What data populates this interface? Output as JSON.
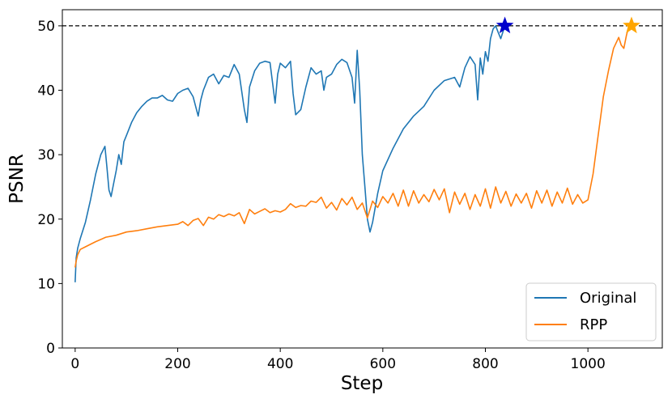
{
  "chart_data": {
    "type": "line",
    "title": "",
    "xlabel": "Step",
    "ylabel": "PSNR",
    "xlim": [
      -25,
      1145
    ],
    "ylim": [
      0,
      52.5
    ],
    "xticks": [
      0,
      200,
      400,
      600,
      800,
      1000
    ],
    "yticks": [
      0,
      10,
      20,
      30,
      40,
      50
    ],
    "grid": false,
    "legend_position": "bottom-right",
    "reference_line": {
      "y": 50,
      "style": "dashed",
      "color": "#000000"
    },
    "series": [
      {
        "name": "Original",
        "color": "#1f77b4",
        "x": [
          0,
          2,
          5,
          10,
          20,
          30,
          40,
          50,
          58,
          62,
          66,
          70,
          75,
          80,
          85,
          90,
          95,
          100,
          110,
          120,
          130,
          140,
          150,
          160,
          170,
          180,
          190,
          200,
          210,
          220,
          230,
          240,
          245,
          250,
          260,
          270,
          280,
          290,
          300,
          310,
          320,
          330,
          335,
          340,
          350,
          360,
          370,
          380,
          390,
          395,
          400,
          410,
          420,
          425,
          430,
          440,
          450,
          460,
          470,
          480,
          485,
          490,
          500,
          510,
          520,
          530,
          540,
          545,
          550,
          555,
          560,
          565,
          570,
          575,
          580,
          590,
          600,
          620,
          640,
          660,
          680,
          700,
          720,
          740,
          750,
          760,
          770,
          780,
          785,
          790,
          795,
          800,
          805,
          810,
          815,
          820,
          825,
          830,
          838
        ],
        "y": [
          10.2,
          14,
          15.5,
          17,
          19.5,
          23,
          27,
          30,
          31.3,
          28,
          24.5,
          23.5,
          25.5,
          27.5,
          30,
          28.5,
          32,
          33,
          35,
          36.5,
          37.5,
          38.3,
          38.8,
          38.8,
          39.2,
          38.5,
          38.3,
          39.5,
          40,
          40.3,
          39,
          36,
          38.5,
          40,
          42,
          42.5,
          41,
          42.3,
          42,
          44,
          42.5,
          37,
          35,
          40.5,
          43,
          44.2,
          44.5,
          44.3,
          38,
          42.5,
          44.2,
          43.5,
          44.5,
          39.5,
          36.2,
          37,
          40.5,
          43.5,
          42.5,
          43,
          40,
          42,
          42.5,
          44,
          44.8,
          44.3,
          42,
          38,
          46.2,
          40,
          30,
          25,
          20,
          18,
          19.5,
          24,
          27.5,
          31,
          34,
          36,
          37.5,
          40,
          41.5,
          42,
          40.5,
          43.5,
          45.2,
          44,
          38.5,
          45,
          42.5,
          46,
          44.5,
          48,
          49.5,
          50,
          49,
          48,
          50
        ]
      },
      {
        "name": "RPP",
        "color": "#ff7f0e",
        "x": [
          0,
          2,
          5,
          10,
          20,
          40,
          60,
          80,
          100,
          120,
          140,
          160,
          180,
          200,
          210,
          220,
          230,
          240,
          250,
          260,
          270,
          280,
          290,
          300,
          310,
          320,
          330,
          340,
          350,
          360,
          370,
          380,
          390,
          400,
          410,
          420,
          430,
          440,
          450,
          460,
          470,
          480,
          490,
          500,
          510,
          520,
          530,
          540,
          550,
          560,
          570,
          580,
          590,
          600,
          610,
          620,
          630,
          640,
          650,
          660,
          670,
          680,
          690,
          700,
          710,
          720,
          730,
          740,
          750,
          760,
          770,
          780,
          790,
          800,
          810,
          820,
          830,
          840,
          850,
          860,
          870,
          880,
          890,
          900,
          910,
          920,
          930,
          940,
          950,
          960,
          970,
          980,
          990,
          1000,
          1010,
          1020,
          1030,
          1040,
          1050,
          1060,
          1065,
          1070,
          1075,
          1080,
          1085
        ],
        "y": [
          12.5,
          13.5,
          14.5,
          15.3,
          15.7,
          16.5,
          17.2,
          17.5,
          18,
          18.2,
          18.5,
          18.8,
          19,
          19.2,
          19.6,
          19,
          19.8,
          20.1,
          19,
          20.3,
          20,
          20.7,
          20.4,
          20.8,
          20.5,
          21,
          19.3,
          21.5,
          20.8,
          21.2,
          21.6,
          21,
          21.3,
          21.1,
          21.5,
          22.4,
          21.8,
          22.1,
          22,
          22.8,
          22.6,
          23.4,
          21.7,
          22.6,
          21.4,
          23.2,
          22.2,
          23.4,
          21.5,
          22.5,
          20.2,
          22.8,
          21.8,
          23.5,
          22.5,
          24,
          22,
          24.5,
          22,
          24.4,
          22.5,
          23.8,
          22.7,
          24.6,
          23,
          24.7,
          21,
          24.2,
          22.3,
          24,
          21.5,
          23.8,
          22,
          24.7,
          21.7,
          25,
          22.5,
          24.3,
          22,
          23.9,
          22.5,
          24,
          21.7,
          24.4,
          22.5,
          24.5,
          22,
          24.2,
          22.5,
          24.8,
          22.3,
          23.8,
          22.5,
          23,
          27,
          33,
          39,
          43,
          46.5,
          48.2,
          47,
          46.5,
          48.5,
          50,
          50
        ]
      }
    ],
    "markers": [
      {
        "series": "Original",
        "x": 838,
        "y": 50,
        "symbol": "star",
        "color": "#0000cc"
      },
      {
        "series": "RPP",
        "x": 1085,
        "y": 50,
        "symbol": "star",
        "color": "#ffa500"
      }
    ]
  }
}
